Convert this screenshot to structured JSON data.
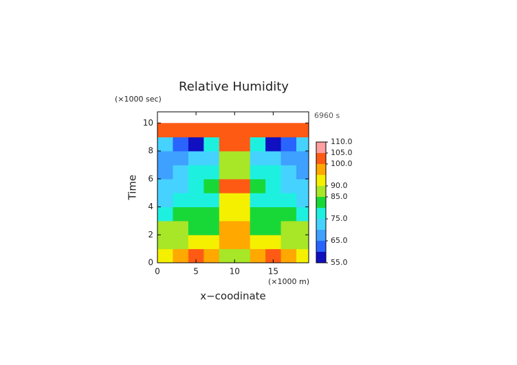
{
  "chart_data": {
    "type": "contour",
    "title": "Relative Humidity",
    "y_unit": "(×1000 sec)",
    "x_unit": "(×1000 m)",
    "time_label": "6960 s",
    "xlabel": "x−coodinate",
    "ylabel": "Time",
    "xlim": [
      0,
      19.6
    ],
    "ylim": [
      0,
      10.8
    ],
    "xticks": [
      0,
      5,
      10,
      15
    ],
    "yticks": [
      0,
      2,
      4,
      6,
      8,
      10
    ],
    "x": [
      1,
      3,
      5,
      7,
      9,
      11,
      13,
      15,
      17,
      19
    ],
    "y": [
      0.5,
      1.5,
      2.5,
      3.5,
      4.5,
      5.5,
      6.5,
      7.5,
      8.5,
      9.5
    ],
    "z": [
      [
        92,
        97,
        100,
        95,
        88,
        88,
        95,
        100,
        97,
        92
      ],
      [
        85,
        88,
        90,
        92,
        97,
        97,
        92,
        90,
        88,
        85
      ],
      [
        88,
        85,
        82,
        82,
        95,
        95,
        82,
        82,
        85,
        88
      ],
      [
        78,
        80,
        82,
        80,
        92,
        92,
        80,
        82,
        80,
        78
      ],
      [
        72,
        75,
        78,
        75,
        90,
        90,
        75,
        78,
        75,
        72
      ],
      [
        72,
        70,
        75,
        80,
        100,
        100,
        80,
        75,
        70,
        72
      ],
      [
        68,
        72,
        75,
        78,
        85,
        85,
        78,
        75,
        72,
        68
      ],
      [
        66,
        68,
        70,
        72,
        88,
        88,
        72,
        70,
        68,
        66
      ],
      [
        70,
        62,
        58,
        75,
        100,
        100,
        75,
        58,
        62,
        70
      ],
      [
        100,
        100,
        100,
        100,
        100,
        100,
        100,
        100,
        100,
        100
      ]
    ],
    "levels": [
      55,
      60,
      65,
      70,
      75,
      80,
      85,
      90,
      95,
      100,
      105,
      110
    ],
    "colors": [
      "#1010c0",
      "#2a64ff",
      "#3ea0ff",
      "#46d2ff",
      "#1ef0e0",
      "#18d838",
      "#a8e628",
      "#f4f000",
      "#ffa800",
      "#ff5a14",
      "#ffa0a0"
    ],
    "colorbar_ticks": [
      {
        "value": 55,
        "label": "55.0"
      },
      {
        "value": 65,
        "label": "65.0"
      },
      {
        "value": 75,
        "label": "75.0"
      },
      {
        "value": 85,
        "label": "85.0"
      },
      {
        "value": 90,
        "label": "90.0"
      },
      {
        "value": 100,
        "label": "100.0"
      },
      {
        "value": 105,
        "label": "105.0"
      },
      {
        "value": 110,
        "label": "110.0"
      }
    ]
  }
}
